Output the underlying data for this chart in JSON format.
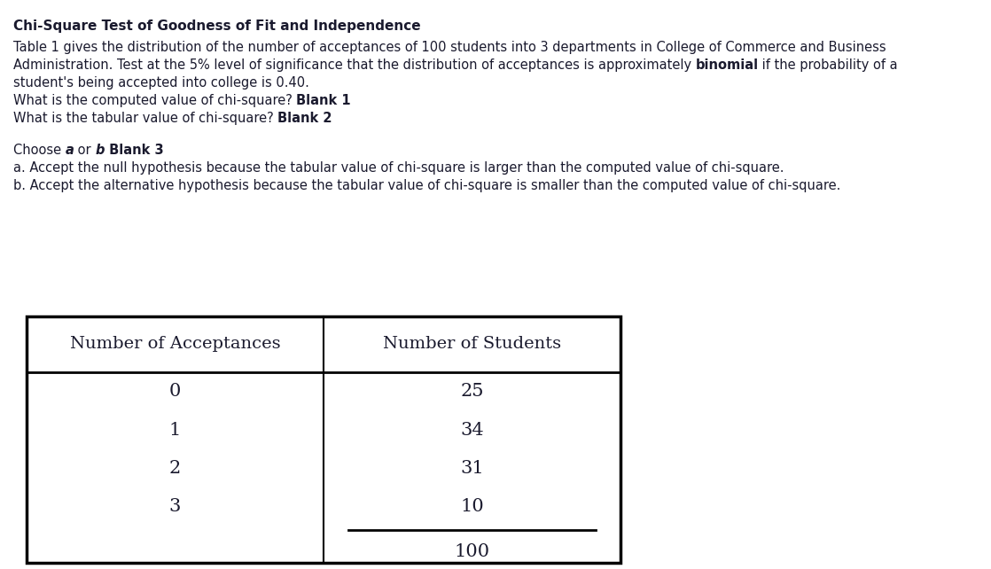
{
  "title": "Chi-Square Test of Goodness of Fit and Independence",
  "paragraph1": "Table 1 gives the distribution of the number of acceptances of 100 students into 3 departments in College of Commerce and Business",
  "paragraph2_normal": "Administration. Test at the 5% level of significance that the distribution of acceptances is approximately ",
  "paragraph2_bold": "binomial",
  "paragraph2_end": " if the probability of a",
  "paragraph3": "student's being accepted into college is 0.40.",
  "line4_normal": "What is the computed value of chi-square? ",
  "line4_bold": "Blank 1",
  "line5_normal": "What is the tabular value of chi-square? ",
  "line5_bold": "Blank 2",
  "choose_normal1": "Choose ",
  "choose_bold1": "a",
  "choose_normal2": " or ",
  "choose_bold2": "b",
  "choose_bold3": " Blank 3",
  "option_a": "a. Accept the null hypothesis because the tabular value of chi-square is larger than the computed value of chi-square.",
  "option_b": "b. Accept the alternative hypothesis because the tabular value of chi-square is smaller than the computed value of chi-square.",
  "col1_header": "Number of Acceptances",
  "col2_header": "Number of Students",
  "table_rows": [
    [
      "0",
      "25"
    ],
    [
      "1",
      "34"
    ],
    [
      "2",
      "31"
    ],
    [
      "3",
      "10"
    ]
  ],
  "total": "100",
  "bg_color": "#ffffff",
  "text_color": "#1a1a2e",
  "body_font": "DejaVu Sans",
  "table_font": "DejaVu Serif",
  "fs_title": 11,
  "fs_body": 10.5,
  "fs_table_header": 14,
  "fs_table_body": 15
}
